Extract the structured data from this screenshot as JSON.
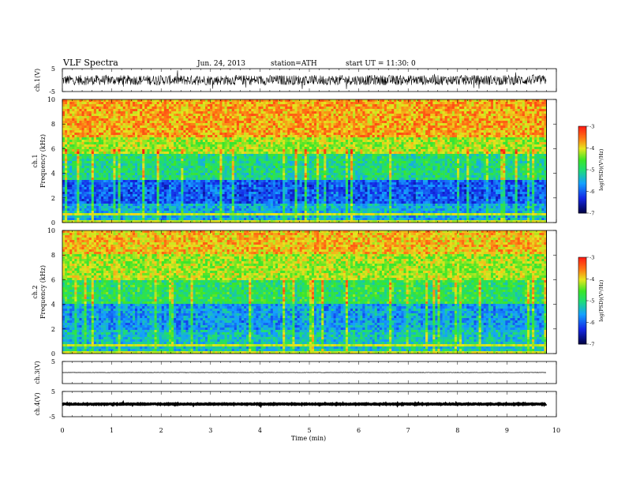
{
  "header": {
    "title": "VLF  Spectra",
    "date": "Jun. 24, 2013",
    "station": "station=ATH",
    "start": "start  UT  =    11:30: 0"
  },
  "colors": {
    "spec_high": "#ff2a1a",
    "spec_mid": "#22dd22",
    "spec_low": "#1a8cff",
    "trace": "#000000"
  },
  "chart_data": [
    {
      "type": "line",
      "name": "ch1-waveform",
      "ylabel": "ch.1(V)",
      "ylim": [
        -5,
        5
      ],
      "yticks": [
        "5",
        "-5"
      ],
      "xlim": [
        0,
        10
      ],
      "description_level": "noisy signal, amplitude about ±2 V"
    },
    {
      "type": "heatmap",
      "name": "ch1-spectrogram",
      "ylabel_line1": "ch.1",
      "ylabel_line2": "Frequency  (kHz)",
      "ylim": [
        0,
        10
      ],
      "yticks": [
        "0",
        "2",
        "4",
        "6",
        "8",
        "10"
      ],
      "xlim": [
        0,
        10
      ],
      "data_end_min": 9.8,
      "colorbar": {
        "label": "log(PSD)(V²/Hz)",
        "range": [
          -7,
          -3
        ],
        "ticks": [
          "-3",
          "-4",
          "-5",
          "-6",
          "-7"
        ]
      },
      "bands_khz": [
        {
          "from": 0,
          "to": 1.5,
          "level": -5.5
        },
        {
          "from": 1.5,
          "to": 3.5,
          "level": -6.0
        },
        {
          "from": 3.5,
          "to": 5.5,
          "level": -5.0
        },
        {
          "from": 5.5,
          "to": 7.0,
          "level": -4.2
        },
        {
          "from": 7.0,
          "to": 10,
          "level": -3.7
        }
      ]
    },
    {
      "type": "heatmap",
      "name": "ch2-spectrogram",
      "ylabel_line1": "ch.2",
      "ylabel_line2": "Frequency  (kHz)",
      "ylim": [
        0,
        10
      ],
      "yticks": [
        "0",
        "2",
        "4",
        "6",
        "8",
        "10"
      ],
      "xlim": [
        0,
        10
      ],
      "data_end_min": 9.8,
      "colorbar": {
        "label": "log(PSD)(V²/Hz)",
        "range": [
          -7,
          -3
        ],
        "ticks": [
          "-3",
          "-4",
          "-5",
          "-6",
          "-7"
        ]
      },
      "bands_khz": [
        {
          "from": 0,
          "to": 2.0,
          "level": -5.3
        },
        {
          "from": 2.0,
          "to": 4.0,
          "level": -5.6
        },
        {
          "from": 4.0,
          "to": 6.0,
          "level": -4.8
        },
        {
          "from": 6.0,
          "to": 8.0,
          "level": -4.2
        },
        {
          "from": 8.0,
          "to": 10,
          "level": -3.8
        }
      ]
    },
    {
      "type": "line",
      "name": "ch3-waveform",
      "ylabel": "ch.3(V)",
      "ylim": [
        -5,
        5
      ],
      "yticks": [
        "5"
      ],
      "xlim": [
        0,
        10
      ],
      "description_level": "flat near 0 V"
    },
    {
      "type": "line",
      "name": "ch4-waveform",
      "ylabel": "ch.4(V)",
      "ylim": [
        -5,
        5
      ],
      "yticks": [
        "5",
        "-5"
      ],
      "xlim": [
        0,
        10
      ],
      "description_level": "thick flat band near 0 V"
    }
  ],
  "xaxis": {
    "label": "Time  (min)",
    "ticks": [
      "0",
      "1",
      "2",
      "3",
      "4",
      "5",
      "6",
      "7",
      "8",
      "9",
      "10"
    ]
  }
}
